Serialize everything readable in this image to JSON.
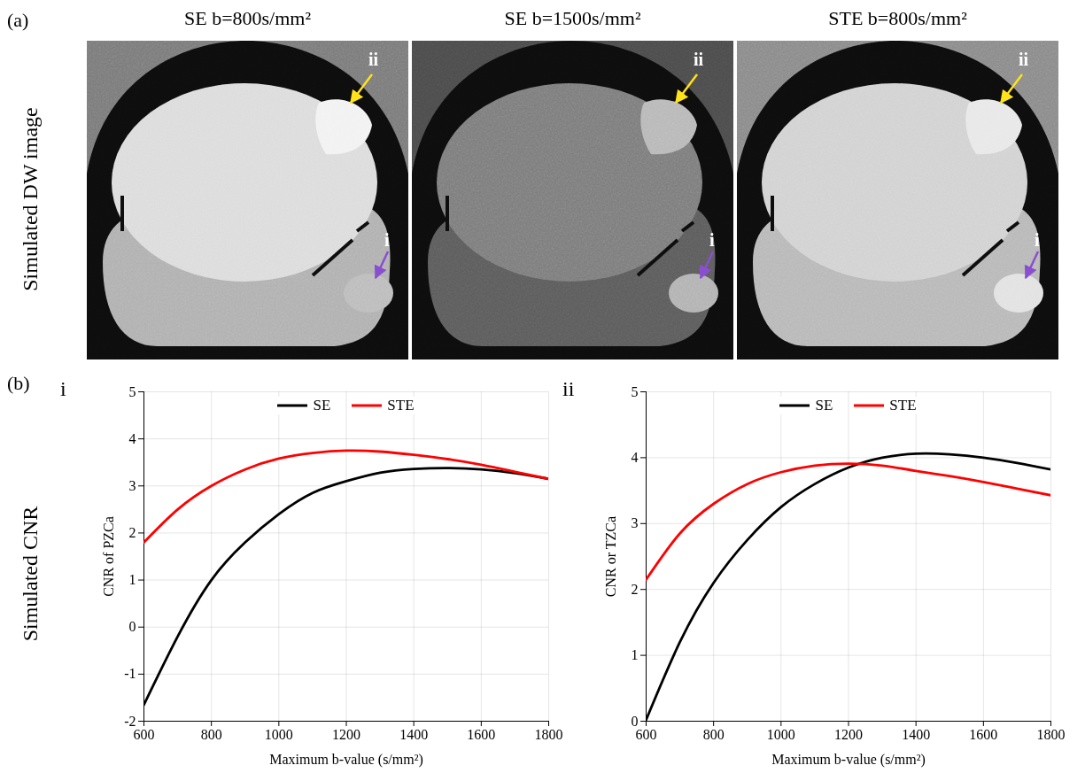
{
  "figure": {
    "panel_a": {
      "letter": "(a)",
      "row_label": "Simulated DW image",
      "arrow_labels": [
        "i",
        "ii"
      ],
      "images": [
        {
          "title": "SE b=800s/mm²"
        },
        {
          "title": "SE b=1500s/mm²"
        },
        {
          "title": "STE b=800s/mm²"
        }
      ]
    },
    "panel_b": {
      "letter": "(b)",
      "row_label": "Simulated CNR"
    }
  },
  "chart_data": [
    {
      "type": "line",
      "panel": "i",
      "xlabel": "Maximum b-value (s/mm²)",
      "ylabel": "CNR of PZCa",
      "x": [
        600,
        700,
        800,
        900,
        1000,
        1100,
        1200,
        1300,
        1400,
        1500,
        1600,
        1700,
        1800
      ],
      "series": [
        {
          "name": "SE",
          "color": "#000000",
          "values": [
            -1.65,
            -0.2,
            1.0,
            1.8,
            2.4,
            2.85,
            3.1,
            3.28,
            3.36,
            3.38,
            3.35,
            3.27,
            3.15
          ]
        },
        {
          "name": "STE",
          "color": "#ff0000",
          "values": [
            1.8,
            2.5,
            3.0,
            3.35,
            3.58,
            3.7,
            3.75,
            3.73,
            3.66,
            3.57,
            3.45,
            3.3,
            3.15
          ]
        }
      ],
      "xlim": [
        600,
        1800
      ],
      "xticks": [
        600,
        800,
        1000,
        1200,
        1400,
        1600,
        1800
      ],
      "ylim": [
        -2,
        5
      ],
      "yticks": [
        -2,
        -1,
        0,
        1,
        2,
        3,
        4,
        5
      ],
      "grid": true,
      "legend": "top"
    },
    {
      "type": "line",
      "panel": "ii",
      "xlabel": "Maximum b-value (s/mm²)",
      "ylabel": "CNR or TZCa",
      "x": [
        600,
        700,
        800,
        900,
        1000,
        1100,
        1200,
        1300,
        1400,
        1500,
        1600,
        1700,
        1800
      ],
      "series": [
        {
          "name": "SE",
          "color": "#000000",
          "values": [
            0.02,
            1.2,
            2.1,
            2.75,
            3.25,
            3.6,
            3.85,
            4.0,
            4.06,
            4.05,
            4.0,
            3.92,
            3.82
          ]
        },
        {
          "name": "STE",
          "color": "#ff0000",
          "values": [
            2.15,
            2.85,
            3.3,
            3.6,
            3.78,
            3.88,
            3.91,
            3.88,
            3.8,
            3.72,
            3.63,
            3.53,
            3.43
          ]
        }
      ],
      "xlim": [
        600,
        1800
      ],
      "xticks": [
        600,
        800,
        1000,
        1200,
        1400,
        1600,
        1800
      ],
      "ylim": [
        0,
        5
      ],
      "yticks": [
        0,
        1,
        2,
        3,
        4,
        5
      ],
      "grid": true,
      "legend": "top"
    }
  ]
}
